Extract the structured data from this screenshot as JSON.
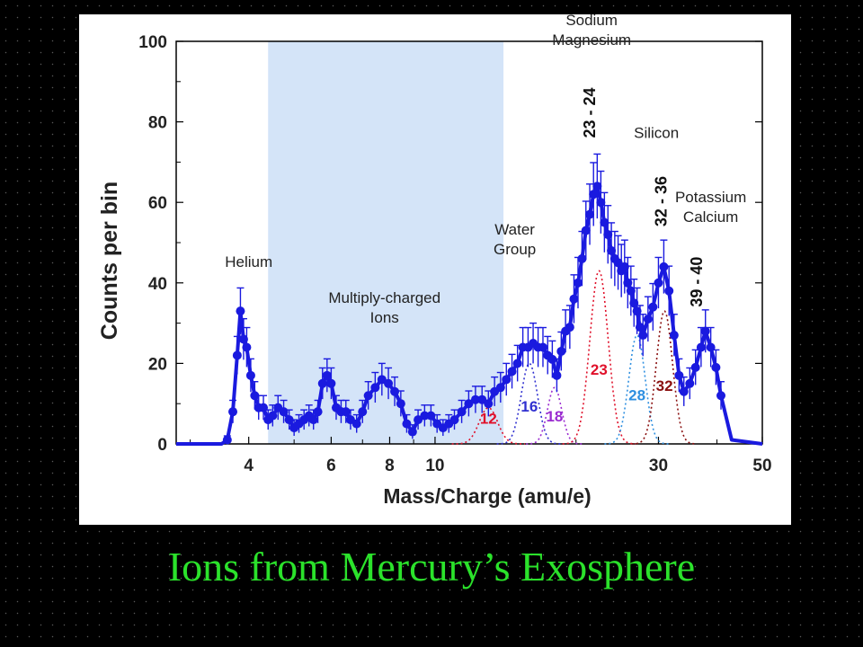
{
  "slide_title": "Ions from Mercury’s Exosphere",
  "colors": {
    "background": "#000000",
    "title": "#2be22b",
    "data": "#1a1adf",
    "shade": "#d4e4f8",
    "c12": "#e0102a",
    "c16": "#3030d0",
    "c18": "#9a2bd0",
    "c23": "#e0102a",
    "c28": "#2e8fe0",
    "c32": "#8a1010"
  },
  "chart_data": {
    "type": "line",
    "xlabel": "Mass/Charge (amu/e)",
    "ylabel": "Counts per bin",
    "xscale": "log",
    "xlim": [
      2.8,
      50
    ],
    "ylim": [
      0,
      100
    ],
    "x_ticks": [
      4,
      6,
      8,
      10,
      30,
      50
    ],
    "y_ticks": [
      0,
      20,
      40,
      60,
      80,
      100
    ],
    "shaded_region": {
      "x": [
        4.4,
        14
      ],
      "label": "Multiply-charged Ions"
    },
    "points": [
      [
        3.6,
        1
      ],
      [
        3.7,
        8
      ],
      [
        3.78,
        22
      ],
      [
        3.84,
        33
      ],
      [
        3.9,
        26
      ],
      [
        3.96,
        24
      ],
      [
        4.04,
        17
      ],
      [
        4.12,
        12
      ],
      [
        4.2,
        9
      ],
      [
        4.3,
        9
      ],
      [
        4.4,
        6
      ],
      [
        4.5,
        7
      ],
      [
        4.62,
        9
      ],
      [
        4.75,
        8
      ],
      [
        4.88,
        6
      ],
      [
        5.0,
        4
      ],
      [
        5.12,
        5
      ],
      [
        5.25,
        6
      ],
      [
        5.38,
        7
      ],
      [
        5.5,
        6
      ],
      [
        5.62,
        8
      ],
      [
        5.75,
        15
      ],
      [
        5.88,
        17
      ],
      [
        6.0,
        15
      ],
      [
        6.15,
        9
      ],
      [
        6.3,
        8
      ],
      [
        6.45,
        8
      ],
      [
        6.6,
        6
      ],
      [
        6.8,
        5
      ],
      [
        7.0,
        8
      ],
      [
        7.2,
        12
      ],
      [
        7.45,
        14
      ],
      [
        7.7,
        16
      ],
      [
        7.95,
        15
      ],
      [
        8.2,
        13
      ],
      [
        8.45,
        10
      ],
      [
        8.7,
        5
      ],
      [
        8.95,
        3
      ],
      [
        9.2,
        6
      ],
      [
        9.5,
        7
      ],
      [
        9.8,
        7
      ],
      [
        10.1,
        5
      ],
      [
        10.4,
        4
      ],
      [
        10.7,
        5
      ],
      [
        11.0,
        6
      ],
      [
        11.4,
        8
      ],
      [
        11.8,
        10
      ],
      [
        12.2,
        11
      ],
      [
        12.6,
        11
      ],
      [
        13.0,
        10
      ],
      [
        13.4,
        13
      ],
      [
        13.8,
        14
      ],
      [
        14.2,
        16
      ],
      [
        14.6,
        18
      ],
      [
        15.0,
        20
      ],
      [
        15.4,
        24
      ],
      [
        15.8,
        24
      ],
      [
        16.2,
        25
      ],
      [
        16.6,
        24
      ],
      [
        17.0,
        24
      ],
      [
        17.4,
        22
      ],
      [
        17.8,
        21
      ],
      [
        18.2,
        17
      ],
      [
        18.6,
        23
      ],
      [
        19.0,
        28
      ],
      [
        19.4,
        29
      ],
      [
        19.8,
        36
      ],
      [
        20.2,
        40
      ],
      [
        20.6,
        46
      ],
      [
        21.0,
        53
      ],
      [
        21.4,
        57
      ],
      [
        21.8,
        62
      ],
      [
        22.2,
        64
      ],
      [
        22.6,
        60
      ],
      [
        23.0,
        55
      ],
      [
        23.4,
        52
      ],
      [
        23.8,
        48
      ],
      [
        24.2,
        46
      ],
      [
        24.6,
        45
      ],
      [
        25.0,
        43
      ],
      [
        25.4,
        44
      ],
      [
        25.8,
        40
      ],
      [
        26.2,
        38
      ],
      [
        26.6,
        35
      ],
      [
        27.0,
        33
      ],
      [
        27.4,
        29
      ],
      [
        27.8,
        27
      ],
      [
        28.5,
        31
      ],
      [
        29.2,
        34
      ],
      [
        30.0,
        40
      ],
      [
        30.8,
        44
      ],
      [
        31.6,
        38
      ],
      [
        32.4,
        27
      ],
      [
        33.2,
        17
      ],
      [
        34.0,
        13
      ],
      [
        35.0,
        15
      ],
      [
        36.0,
        19
      ],
      [
        37.0,
        24
      ],
      [
        37.8,
        28
      ],
      [
        38.8,
        24
      ],
      [
        39.8,
        19
      ],
      [
        40.8,
        12
      ]
    ],
    "components": [
      {
        "label": "12",
        "center": 13.0,
        "amplitude": 9,
        "width": 0.045
      },
      {
        "label": "16",
        "center": 15.9,
        "amplitude": 20,
        "width": 0.04
      },
      {
        "label": "18",
        "center": 18.0,
        "amplitude": 14,
        "width": 0.035
      },
      {
        "label": "23",
        "center": 22.4,
        "amplitude": 43,
        "width": 0.045
      },
      {
        "label": "28",
        "center": 27.0,
        "amplitude": 27,
        "width": 0.04
      },
      {
        "label": "32",
        "center": 30.9,
        "amplitude": 33,
        "width": 0.04
      }
    ],
    "annotations": [
      {
        "lines": [
          "Helium"
        ],
        "x": 4.0,
        "y": 44
      },
      {
        "lines": [
          "Multiply-charged",
          "Ions"
        ],
        "x": 7.8,
        "y": 35
      },
      {
        "lines": [
          "Water",
          "Group"
        ],
        "x": 14.8,
        "y": 52
      },
      {
        "lines": [
          "Sodium",
          "Magnesium"
        ],
        "x": 21.6,
        "y": 104
      },
      {
        "lines": [
          "Silicon"
        ],
        "x": 29.7,
        "y": 76
      },
      {
        "lines": [
          "Potassium",
          "Calcium"
        ],
        "x": 38.8,
        "y": 60
      }
    ],
    "vertical_labels": [
      {
        "text": "23 - 24",
        "x": 21.4,
        "y": 76
      },
      {
        "text": "32 - 36",
        "x": 30.4,
        "y": 54
      },
      {
        "text": "39 - 40",
        "x": 36.2,
        "y": 34
      }
    ]
  }
}
